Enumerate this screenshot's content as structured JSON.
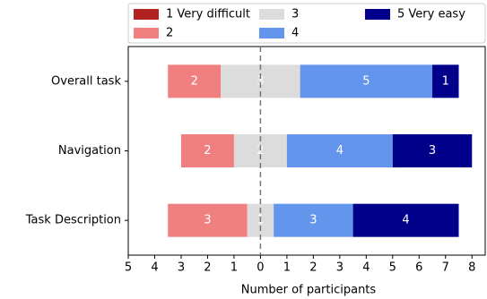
{
  "chart_data": {
    "type": "diverging_bar",
    "categories": [
      "Overall task",
      "Navigation",
      "Task Description"
    ],
    "series": [
      {
        "name": "1 Very difficult",
        "color": "#b22222",
        "values": [
          0,
          0,
          0
        ]
      },
      {
        "name": "2",
        "color": "#f08080",
        "values": [
          2,
          2,
          3
        ]
      },
      {
        "name": "3",
        "color": "#dcdcdc",
        "values": [
          3,
          2,
          1
        ]
      },
      {
        "name": "4",
        "color": "#6495ed",
        "values": [
          5,
          4,
          3
        ]
      },
      {
        "name": "5 Very easy",
        "color": "#00008b",
        "values": [
          1,
          3,
          4
        ]
      }
    ],
    "xlabel": "Number of participants",
    "xlim": [
      -5,
      8.5
    ],
    "xticks": [
      {
        "value": -5,
        "label": "5"
      },
      {
        "value": -4,
        "label": "4"
      },
      {
        "value": -3,
        "label": "3"
      },
      {
        "value": -2,
        "label": "2"
      },
      {
        "value": -1,
        "label": "1"
      },
      0,
      1,
      2,
      3,
      4,
      5,
      6,
      7,
      8
    ],
    "vline": 0,
    "legend": "top"
  }
}
